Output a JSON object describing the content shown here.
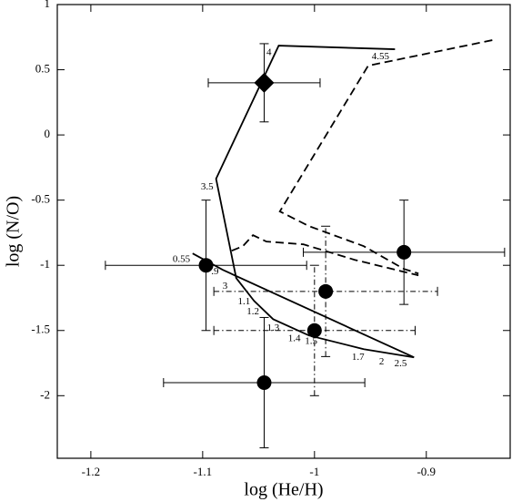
{
  "chart_data": {
    "type": "scatter",
    "xlabel": "log (He/H)",
    "ylabel": "log (N/O)",
    "xlim": [
      -1.23,
      -0.825
    ],
    "ylim": [
      -2.48,
      1
    ],
    "xticks": [
      -1.2,
      -1.1,
      -1,
      -0.9
    ],
    "yticks": [
      1,
      0.5,
      0,
      -0.5,
      -1,
      -1.5,
      -2
    ],
    "color": "#000000",
    "points": {
      "x": [
        -1.045,
        -1.097,
        -0.92,
        -0.99,
        -1.0,
        -1.045
      ],
      "y": [
        0.4,
        -1.0,
        -0.9,
        -1.2,
        -1.5,
        -1.9
      ],
      "xerr": [
        0.05,
        0.09,
        0.09,
        0.1,
        0.09,
        0.09
      ],
      "yerr": [
        0.3,
        0.5,
        0.4,
        0.5,
        0.5,
        0.5
      ],
      "marker": [
        "diamond",
        "circle",
        "circle",
        "circle",
        "circle",
        "circle"
      ],
      "err_style": [
        "solid",
        "solid",
        "solid",
        "dashdot",
        "dashdot",
        "solid"
      ]
    },
    "curves": [
      {
        "style": "solid",
        "x": [
          -0.928,
          -1.032,
          -1.088,
          -1.07,
          -1.054,
          -1.037,
          -1.005,
          -0.956,
          -0.911
        ],
        "y": [
          0.657,
          0.685,
          -0.336,
          -1.098,
          -1.273,
          -1.413,
          -1.538,
          -1.643,
          -1.706
        ]
      },
      {
        "style": "solid",
        "x": [
          -1.109,
          -1.082,
          -0.911
        ],
        "y": [
          -0.909,
          -1.035,
          -1.706
        ]
      },
      {
        "style": "dashed",
        "x": [
          -0.841,
          -0.952,
          -1.031,
          -1.005,
          -0.956,
          -0.92,
          -0.907
        ],
        "y": [
          0.727,
          0.531,
          -0.587,
          -0.699,
          -0.853,
          -1.028,
          -1.063
        ]
      },
      {
        "style": "dashed",
        "x": [
          -1.074,
          -1.064,
          -1.055,
          -1.043,
          -1.01,
          -0.964,
          -0.907
        ],
        "y": [
          -0.888,
          -0.853,
          -0.769,
          -0.818,
          -0.839,
          -0.958,
          -1.077
        ]
      }
    ],
    "annotations": [
      {
        "text": "4",
        "x": -1.0407,
        "y": 0.629
      },
      {
        "text": "4.55",
        "x": -0.941,
        "y": 0.6
      },
      {
        "text": "3.5",
        "x": -1.096,
        "y": -0.4
      },
      {
        "text": "0.55",
        "x": -1.119,
        "y": -0.958
      },
      {
        "text": ".9",
        "x": -1.089,
        "y": -1.049
      },
      {
        "text": "3",
        "x": -1.08,
        "y": -1.161
      },
      {
        "text": "1.1",
        "x": -1.063,
        "y": -1.28
      },
      {
        "text": "1.2",
        "x": -1.055,
        "y": -1.357
      },
      {
        "text": "1.3",
        "x": -1.037,
        "y": -1.483
      },
      {
        "text": "1.4",
        "x": -1.018,
        "y": -1.566
      },
      {
        "text": "1.5",
        "x": -1.003,
        "y": -1.587
      },
      {
        "text": "1.7",
        "x": -0.961,
        "y": -1.706
      },
      {
        "text": "2",
        "x": -0.94,
        "y": -1.741
      },
      {
        "text": "2.5",
        "x": -0.923,
        "y": -1.755
      }
    ]
  }
}
